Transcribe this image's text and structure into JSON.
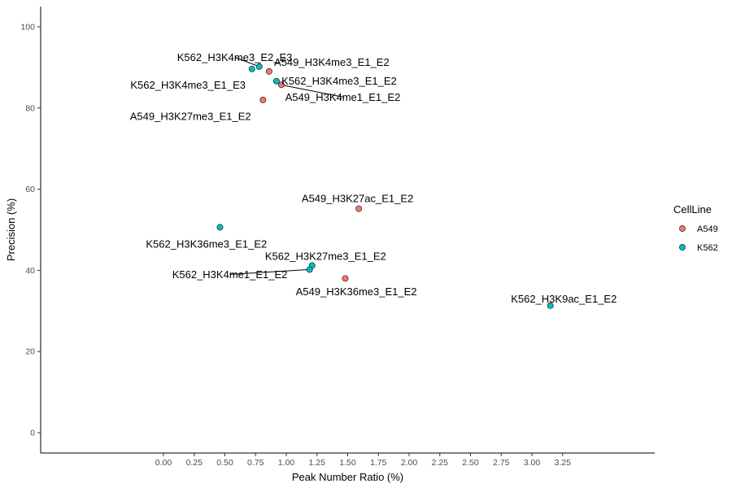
{
  "chart_data": {
    "type": "scatter",
    "xlabel": "Peak Number Ratio (%)",
    "ylabel": "Precision (%)",
    "xlim": [
      -1.0,
      4.0
    ],
    "ylim": [
      -5,
      105
    ],
    "xticks": [
      0.0,
      0.25,
      0.5,
      0.75,
      1.0,
      1.25,
      1.5,
      1.75,
      2.0,
      2.25,
      2.5,
      2.75,
      3.0,
      3.25
    ],
    "xtick_labels": [
      "0.00",
      "0.25",
      "0.50",
      "0.75",
      "1.00",
      "1.25",
      "1.50",
      "1.75",
      "2.00",
      "2.25",
      "2.50",
      "2.75",
      "3.00",
      "3.25"
    ],
    "yticks": [
      0,
      20,
      40,
      60,
      80,
      100
    ],
    "ytick_labels": [
      "0",
      "20",
      "40",
      "60",
      "80",
      "100"
    ],
    "grid": false,
    "legend": {
      "title": "CellLine",
      "placement": "right",
      "entries": [
        {
          "name": "A549",
          "color": "#F8766D"
        },
        {
          "name": "K562",
          "color": "#00BFC4"
        }
      ]
    },
    "points": [
      {
        "label": "K562_H3K4me3_E2_E3",
        "x": 0.78,
        "y": 90.2,
        "group": "K562",
        "lx": 0.58,
        "ly": 92.5,
        "leader": true
      },
      {
        "label": "A549_H3K4me3_E1_E2",
        "x": 0.86,
        "y": 89.0,
        "group": "A549",
        "lx": 1.37,
        "ly": 91.3,
        "leader": false
      },
      {
        "label": "K562_H3K4me3_E1_E3",
        "x": 0.72,
        "y": 89.6,
        "group": "K562",
        "lx": 0.2,
        "ly": 85.7,
        "leader": false
      },
      {
        "label": "K562_H3K4me3_E1_E2",
        "x": 0.92,
        "y": 86.6,
        "group": "K562",
        "lx": 1.43,
        "ly": 86.7,
        "leader": false
      },
      {
        "label": "A549_H3K4me1_E1_E2",
        "x": 0.96,
        "y": 85.7,
        "group": "A549",
        "lx": 1.46,
        "ly": 82.7,
        "leader": true
      },
      {
        "label": "A549_H3K27me3_E1_E2",
        "x": 0.81,
        "y": 82.0,
        "group": "A549",
        "lx": 0.22,
        "ly": 78.0,
        "leader": false
      },
      {
        "label": "A549_H3K27ac_E1_E2",
        "x": 1.59,
        "y": 55.2,
        "group": "A549",
        "lx": 1.58,
        "ly": 57.7,
        "leader": false
      },
      {
        "label": "K562_H3K36me3_E1_E2",
        "x": 0.46,
        "y": 50.6,
        "group": "K562",
        "lx": 0.35,
        "ly": 46.5,
        "leader": false
      },
      {
        "label": "K562_H3K27me3_E1_E2",
        "x": 1.21,
        "y": 41.2,
        "group": "K562",
        "lx": 1.32,
        "ly": 43.5,
        "leader": false
      },
      {
        "label": "K562_H3K4me1_E1_E2",
        "x": 1.19,
        "y": 40.2,
        "group": "K562",
        "lx": 0.54,
        "ly": 39.0,
        "leader": true
      },
      {
        "label": "A549_H3K36me3_E1_E2",
        "x": 1.48,
        "y": 38.0,
        "group": "A549",
        "lx": 1.57,
        "ly": 34.8,
        "leader": false
      },
      {
        "label": "K562_H3K9ac_E1_E2",
        "x": 3.15,
        "y": 31.3,
        "group": "K562",
        "lx": 3.26,
        "ly": 33.0,
        "leader": false
      }
    ]
  }
}
